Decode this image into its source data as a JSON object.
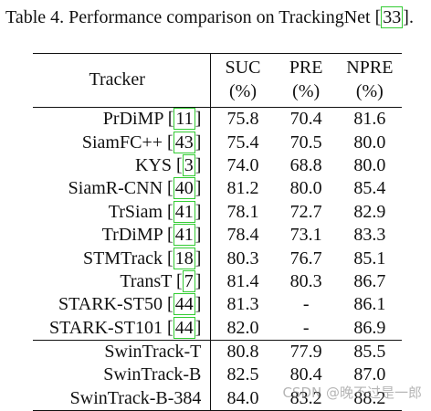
{
  "caption": {
    "prefix": "Table 4. Performance comparison on TrackingNet [",
    "cite": "33",
    "suffix": "]."
  },
  "header": {
    "tracker": "Tracker",
    "suc": "SUC",
    "pre": "PRE",
    "npre": "NPRE",
    "unit": "(%)"
  },
  "rows_prior": [
    {
      "name": "PrDiMP",
      "cite": "11",
      "suc": "75.8",
      "pre": "70.4",
      "npre": "81.6"
    },
    {
      "name": "SiamFC++",
      "cite": "43",
      "suc": "75.4",
      "pre": "70.5",
      "npre": "80.0"
    },
    {
      "name": "KYS",
      "cite": "3",
      "suc": "74.0",
      "pre": "68.8",
      "npre": "80.0"
    },
    {
      "name": "SiamR-CNN",
      "cite": "40",
      "suc": "81.2",
      "pre": "80.0",
      "npre": "85.4"
    },
    {
      "name": "TrSiam",
      "cite": "41",
      "suc": "78.1",
      "pre": "72.7",
      "npre": "82.9"
    },
    {
      "name": "TrDiMP",
      "cite": "41",
      "suc": "78.4",
      "pre": "73.1",
      "npre": "83.3"
    },
    {
      "name": "STMTrack",
      "cite": "18",
      "suc": "80.3",
      "pre": "76.7",
      "npre": "85.1"
    },
    {
      "name": "TransT",
      "cite": "7",
      "suc": "81.4",
      "pre": "80.3",
      "npre": "86.7"
    },
    {
      "name": "STARK-ST50",
      "cite": "44",
      "suc": "81.3",
      "pre": "-",
      "npre": "86.1"
    },
    {
      "name": "STARK-ST101",
      "cite": "44",
      "suc": "82.0",
      "pre": "-",
      "npre": "86.9"
    }
  ],
  "rows_ours": [
    {
      "name": "SwinTrack-T",
      "suc": "80.8",
      "pre": "77.9",
      "npre": "85.5"
    },
    {
      "name": "SwinTrack-B",
      "suc": "82.5",
      "pre": "80.4",
      "npre": "87.0"
    },
    {
      "name": "SwinTrack-B-384",
      "suc": "84.0",
      "pre": "83.2",
      "npre": "88.2"
    }
  ],
  "watermark": "CSDN @晚不过是一郎",
  "colors": {
    "cite_box": "#33cc33",
    "text": "#111111"
  }
}
